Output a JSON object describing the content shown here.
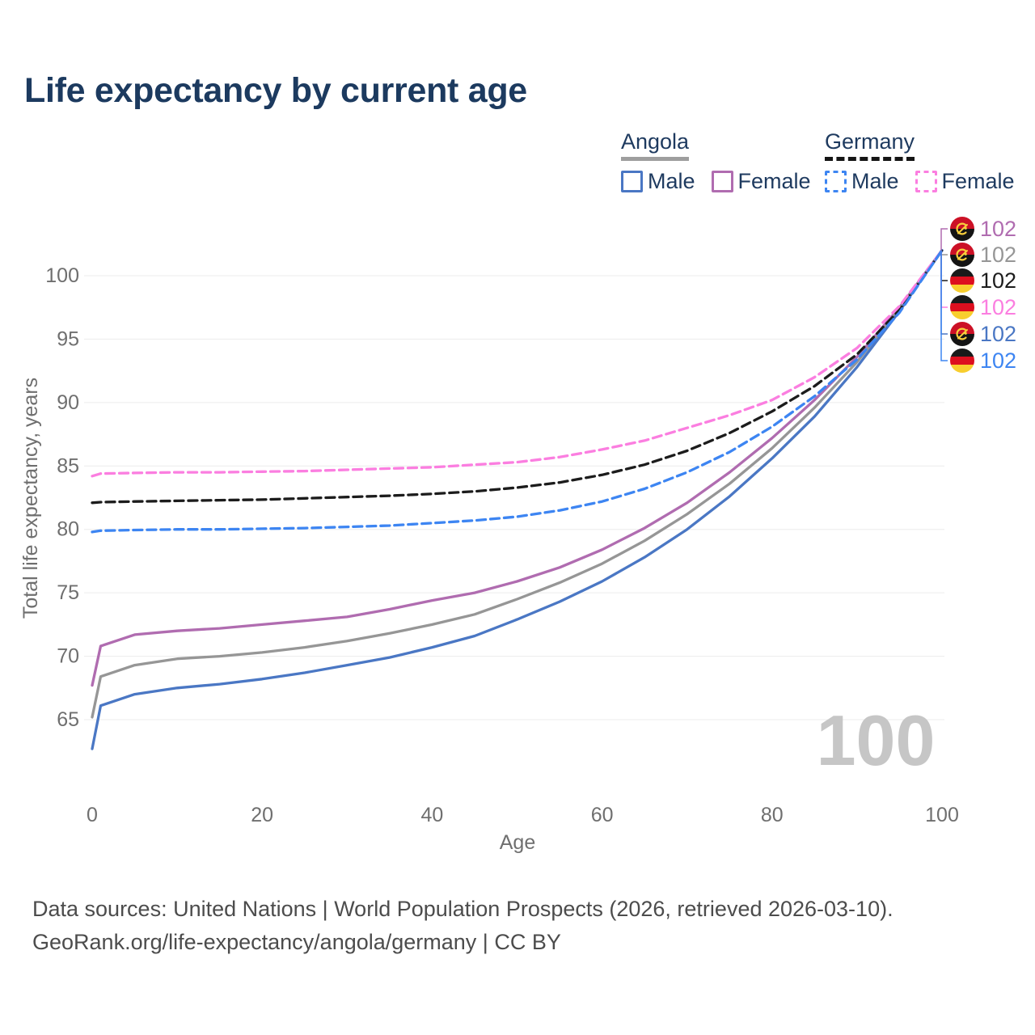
{
  "title": "Life expectancy by current age",
  "legend": {
    "groups": [
      {
        "name": "Angola",
        "line_style": "solid",
        "underline_color": "#9e9e9e",
        "items": [
          {
            "label": "Male",
            "color": "#4a77c4"
          },
          {
            "label": "Female",
            "color": "#b06cb0"
          }
        ]
      },
      {
        "name": "Germany",
        "line_style": "dashed",
        "underline_color": "#151515",
        "items": [
          {
            "label": "Male",
            "color": "#3d85f2"
          },
          {
            "label": "Female",
            "color": "#fb7ee0"
          }
        ]
      }
    ]
  },
  "age_watermark": "100",
  "footer": {
    "line1": "Data sources: United Nations | World Population Prospects (2026, retrieved 2026-03-10).",
    "line2": "GeoRank.org/life-expectancy/angola/germany | CC BY"
  },
  "chart_data": {
    "type": "line",
    "title": "Life expectancy by current age",
    "xlabel": "Age",
    "ylabel": "Total life expectancy, years",
    "xlim": [
      0,
      100
    ],
    "ylim": [
      62,
      102
    ],
    "x_ticks": [
      0,
      20,
      40,
      60,
      80,
      100
    ],
    "y_ticks": [
      65,
      70,
      75,
      80,
      85,
      90,
      95,
      100
    ],
    "grid": "horizontal",
    "legend_position": "top-right",
    "x": [
      0,
      1,
      5,
      10,
      15,
      20,
      25,
      30,
      35,
      40,
      45,
      50,
      55,
      60,
      65,
      70,
      75,
      80,
      85,
      90,
      95,
      100
    ],
    "series": [
      {
        "id": "angola-female",
        "country": "Angola",
        "sex": "Female",
        "flag": "angola",
        "color": "#b06cb0",
        "dashed": false,
        "end_value": "102",
        "values": [
          67.7,
          70.8,
          71.7,
          72.0,
          72.2,
          72.5,
          72.8,
          73.1,
          73.7,
          74.4,
          75.0,
          75.9,
          77.0,
          78.4,
          80.1,
          82.1,
          84.5,
          87.2,
          90.2,
          93.6,
          97.5,
          102
        ]
      },
      {
        "id": "angola-both",
        "country": "Angola",
        "sex": "Both sexes",
        "flag": "angola",
        "color": "#969696",
        "dashed": false,
        "end_value": "102",
        "values": [
          65.2,
          68.4,
          69.3,
          69.8,
          70.0,
          70.3,
          70.7,
          71.2,
          71.8,
          72.5,
          73.3,
          74.5,
          75.8,
          77.3,
          79.1,
          81.2,
          83.6,
          86.4,
          89.6,
          93.2,
          97.4,
          102
        ]
      },
      {
        "id": "germany-both",
        "country": "Germany",
        "sex": "Both sexes",
        "flag": "germany",
        "color": "#1c1c1c",
        "dashed": true,
        "end_value": "102",
        "values": [
          82.1,
          82.15,
          82.2,
          82.25,
          82.3,
          82.35,
          82.45,
          82.55,
          82.65,
          82.8,
          83.0,
          83.3,
          83.7,
          84.3,
          85.1,
          86.2,
          87.6,
          89.3,
          91.3,
          93.8,
          97.3,
          102
        ]
      },
      {
        "id": "germany-female",
        "country": "Germany",
        "sex": "Female",
        "flag": "germany",
        "color": "#fb7ee0",
        "dashed": true,
        "end_value": "102",
        "values": [
          84.2,
          84.4,
          84.45,
          84.5,
          84.5,
          84.55,
          84.6,
          84.7,
          84.8,
          84.9,
          85.1,
          85.3,
          85.7,
          86.3,
          87.0,
          88.0,
          89.0,
          90.2,
          92.0,
          94.3,
          97.6,
          102
        ]
      },
      {
        "id": "angola-male",
        "country": "Angola",
        "sex": "Male",
        "flag": "angola",
        "color": "#4a77c4",
        "dashed": false,
        "end_value": "102",
        "values": [
          62.7,
          66.1,
          67.0,
          67.5,
          67.8,
          68.2,
          68.7,
          69.3,
          69.9,
          70.7,
          71.6,
          72.9,
          74.3,
          75.9,
          77.8,
          80.0,
          82.6,
          85.6,
          88.9,
          92.8,
          97.2,
          102
        ]
      },
      {
        "id": "germany-male",
        "country": "Germany",
        "sex": "Male",
        "flag": "germany",
        "color": "#3d85f2",
        "dashed": true,
        "end_value": "102",
        "values": [
          79.8,
          79.9,
          79.95,
          80.0,
          80.0,
          80.05,
          80.1,
          80.2,
          80.3,
          80.5,
          80.7,
          81.0,
          81.5,
          82.2,
          83.2,
          84.5,
          86.1,
          88.1,
          90.5,
          93.4,
          97.1,
          102
        ]
      }
    ],
    "flag_colors": {
      "angola": {
        "top": "#cc1126",
        "bottom": "#141414",
        "emblem": "#f9cf3c"
      },
      "germany": {
        "stripes": [
          "#1a1a1a",
          "#dd0f1f",
          "#f8ce2e"
        ]
      }
    },
    "axis_text_color": "#6f6f6f",
    "gridline_color": "#ececec"
  }
}
